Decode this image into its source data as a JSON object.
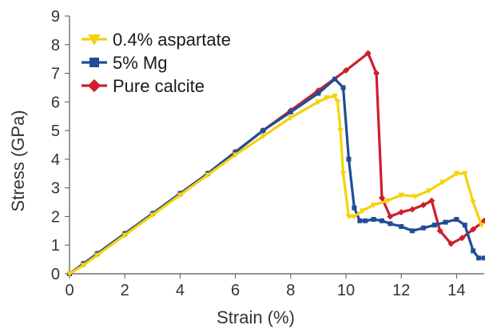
{
  "chart_data": {
    "type": "line",
    "xlabel": "Strain (%)",
    "ylabel": "Stress (GPa)",
    "xlim": [
      0,
      15
    ],
    "ylim": [
      0,
      9
    ],
    "xticks": [
      0,
      2,
      4,
      6,
      8,
      10,
      12,
      14
    ],
    "yticks": [
      0,
      1,
      2,
      3,
      4,
      5,
      6,
      7,
      8,
      9
    ],
    "grid": false,
    "legend_position": "top-left",
    "series": [
      {
        "name": "0.4% aspartate",
        "color": "#f5d20c",
        "marker": "triangle-down",
        "x": [
          0,
          0.5,
          1,
          2,
          3,
          4,
          5,
          6,
          7,
          8,
          9,
          9.3,
          9.6,
          9.7,
          9.8,
          9.9,
          10.1,
          10.3,
          10.6,
          11,
          11.5,
          12,
          12.5,
          13,
          13.5,
          14,
          14.3,
          14.6,
          14.9
        ],
        "y": [
          0,
          0.3,
          0.65,
          1.35,
          2.05,
          2.75,
          3.45,
          4.15,
          4.8,
          5.45,
          6.0,
          6.15,
          6.2,
          6.0,
          5.0,
          3.5,
          2.0,
          2.0,
          2.2,
          2.4,
          2.55,
          2.75,
          2.7,
          2.9,
          3.2,
          3.5,
          3.5,
          2.5,
          1.7
        ]
      },
      {
        "name": "5% Mg",
        "color": "#1f4e96",
        "marker": "square",
        "x": [
          0,
          0.5,
          1,
          2,
          3,
          4,
          5,
          6,
          7,
          8,
          9,
          9.6,
          9.9,
          10.1,
          10.3,
          10.5,
          10.7,
          11,
          11.3,
          11.6,
          12,
          12.4,
          12.8,
          13.2,
          13.6,
          14,
          14.3,
          14.6,
          14.8,
          15
        ],
        "y": [
          0,
          0.35,
          0.7,
          1.4,
          2.1,
          2.8,
          3.5,
          4.25,
          5.0,
          5.65,
          6.3,
          6.8,
          6.5,
          4.0,
          2.3,
          1.85,
          1.85,
          1.9,
          1.85,
          1.75,
          1.65,
          1.5,
          1.6,
          1.7,
          1.8,
          1.9,
          1.7,
          0.8,
          0.55,
          0.55
        ]
      },
      {
        "name": "Pure calcite",
        "color": "#cc1f2e",
        "marker": "diamond",
        "x": [
          0,
          0.5,
          1,
          2,
          3,
          4,
          5,
          6,
          7,
          8,
          9,
          10,
          10.8,
          11.1,
          11.3,
          11.6,
          12,
          12.4,
          12.8,
          13.1,
          13.4,
          13.8,
          14.2,
          14.6,
          15
        ],
        "y": [
          0,
          0.35,
          0.7,
          1.4,
          2.1,
          2.8,
          3.5,
          4.25,
          5.0,
          5.7,
          6.4,
          7.1,
          7.7,
          7.0,
          2.65,
          2.0,
          2.15,
          2.25,
          2.4,
          2.55,
          1.5,
          1.05,
          1.25,
          1.55,
          1.85
        ]
      }
    ]
  }
}
